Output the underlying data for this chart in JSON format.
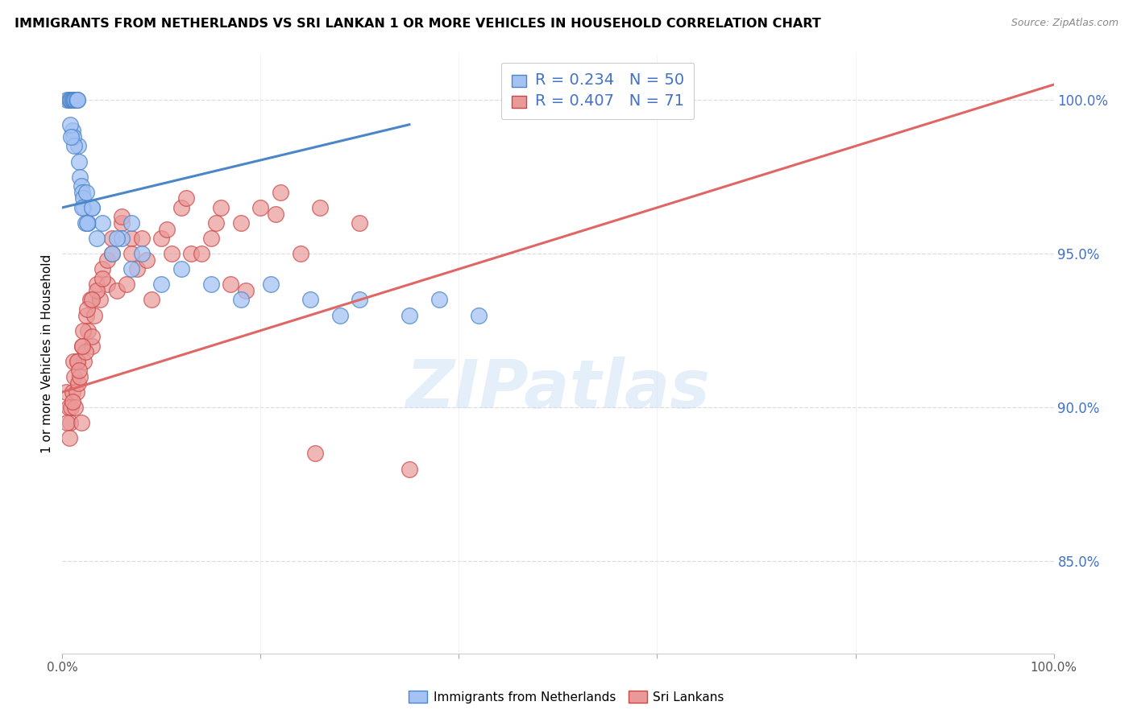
{
  "title": "IMMIGRANTS FROM NETHERLANDS VS SRI LANKAN 1 OR MORE VEHICLES IN HOUSEHOLD CORRELATION CHART",
  "source": "Source: ZipAtlas.com",
  "ylabel": "1 or more Vehicles in Household",
  "legend_label1": "Immigrants from Netherlands",
  "legend_label2": "Sri Lankans",
  "R1": 0.234,
  "N1": 50,
  "R2": 0.407,
  "N2": 71,
  "color_blue_fill": "#a4c2f4",
  "color_blue_edge": "#4a86c8",
  "color_pink_fill": "#ea9999",
  "color_pink_edge": "#cc4444",
  "color_blue_line": "#4a86c8",
  "color_pink_line": "#e06666",
  "xlim": [
    0,
    100
  ],
  "ylim": [
    82.0,
    101.5
  ],
  "yticks": [
    85.0,
    90.0,
    95.0,
    100.0
  ],
  "ytick_labels": [
    "85.0%",
    "90.0%",
    "95.0%",
    "100.0%"
  ],
  "blue_x": [
    0.5,
    0.7,
    0.8,
    0.9,
    1.0,
    1.0,
    1.1,
    1.2,
    1.3,
    1.4,
    1.5,
    1.5,
    1.6,
    1.7,
    1.8,
    1.9,
    2.0,
    2.1,
    2.2,
    2.3,
    2.4,
    2.6,
    3.0,
    3.5,
    4.0,
    5.0,
    6.0,
    7.0,
    8.0,
    10.0,
    12.0,
    15.0,
    18.0,
    21.0,
    25.0,
    28.0,
    30.0,
    35.0,
    38.0,
    42.0,
    1.0,
    1.1,
    1.2,
    0.8,
    0.9,
    2.0,
    2.5,
    3.0,
    5.5,
    7.0
  ],
  "blue_y": [
    100.0,
    100.0,
    100.0,
    100.0,
    100.0,
    100.0,
    100.0,
    100.0,
    100.0,
    100.0,
    100.0,
    100.0,
    98.5,
    98.0,
    97.5,
    97.2,
    97.0,
    96.8,
    96.5,
    96.0,
    97.0,
    96.0,
    96.5,
    95.5,
    96.0,
    95.0,
    95.5,
    94.5,
    95.0,
    94.0,
    94.5,
    94.0,
    93.5,
    94.0,
    93.5,
    93.0,
    93.5,
    93.0,
    93.5,
    93.0,
    99.0,
    98.8,
    98.5,
    99.2,
    98.8,
    96.5,
    96.0,
    96.5,
    95.5,
    96.0
  ],
  "pink_x": [
    0.4,
    0.6,
    0.8,
    1.0,
    1.2,
    1.4,
    1.5,
    1.6,
    1.8,
    2.0,
    2.2,
    2.4,
    2.6,
    2.8,
    3.0,
    3.2,
    3.5,
    3.8,
    4.0,
    4.5,
    5.0,
    5.5,
    6.0,
    6.5,
    7.0,
    7.5,
    8.0,
    9.0,
    10.0,
    11.0,
    12.0,
    13.0,
    14.0,
    15.0,
    16.0,
    17.0,
    18.0,
    20.0,
    22.0,
    24.0,
    26.0,
    30.0,
    35.0,
    0.5,
    0.7,
    0.9,
    1.1,
    1.3,
    1.5,
    1.7,
    1.9,
    2.1,
    2.3,
    2.5,
    3.0,
    3.5,
    4.0,
    4.5,
    5.0,
    6.0,
    7.0,
    8.5,
    10.5,
    12.5,
    15.5,
    18.5,
    21.5,
    25.5,
    1.0,
    2.0,
    3.0
  ],
  "pink_y": [
    90.5,
    90.0,
    89.5,
    90.5,
    91.0,
    90.5,
    91.5,
    90.8,
    91.0,
    92.0,
    91.5,
    93.0,
    92.5,
    93.5,
    92.0,
    93.0,
    94.0,
    93.5,
    94.5,
    94.0,
    95.5,
    93.8,
    96.0,
    94.0,
    95.5,
    94.5,
    95.5,
    93.5,
    95.5,
    95.0,
    96.5,
    95.0,
    95.0,
    95.5,
    96.5,
    94.0,
    96.0,
    96.5,
    97.0,
    95.0,
    96.5,
    96.0,
    88.0,
    89.5,
    89.0,
    90.0,
    91.5,
    90.0,
    91.5,
    91.2,
    89.5,
    92.5,
    91.8,
    93.2,
    92.3,
    93.8,
    94.2,
    94.8,
    95.0,
    96.2,
    95.0,
    94.8,
    95.8,
    96.8,
    96.0,
    93.8,
    96.3,
    88.5,
    90.2,
    92.0,
    93.5
  ],
  "blue_trend_x": [
    0.0,
    35.0
  ],
  "blue_trend_y_start": 96.5,
  "blue_trend_y_end": 99.2,
  "pink_trend_x": [
    0.0,
    100.0
  ],
  "pink_trend_y_start": 90.5,
  "pink_trend_y_end": 100.5
}
